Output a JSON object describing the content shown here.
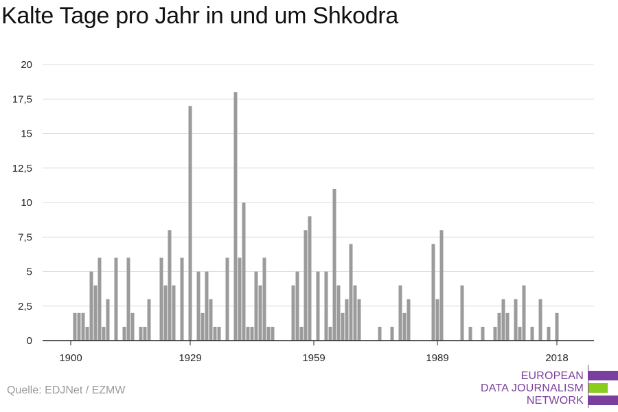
{
  "chart_data": {
    "type": "bar",
    "title": "Kalte Tage pro Jahr in und um Shkodra",
    "xlabel": "",
    "ylabel": "",
    "x_range": [
      1900,
      2022
    ],
    "ylim": [
      0,
      20
    ],
    "y_ticks": [
      0,
      2.5,
      5,
      7.5,
      10,
      12.5,
      15,
      17.5,
      20
    ],
    "y_tick_labels": [
      "0",
      "2,5",
      "5",
      "7,5",
      "10",
      "12,5",
      "15",
      "17,5",
      "20"
    ],
    "x_ticks": [
      1900,
      1929,
      1959,
      1989,
      2018
    ],
    "x_tick_labels": [
      "1900",
      "1929",
      "1959",
      "1989",
      "2018"
    ],
    "grid": true,
    "bar_color": "#9b9b9b",
    "x": [
      1900,
      1901,
      1902,
      1903,
      1904,
      1905,
      1906,
      1907,
      1908,
      1909,
      1910,
      1911,
      1912,
      1913,
      1914,
      1915,
      1916,
      1917,
      1918,
      1919,
      1920,
      1921,
      1922,
      1923,
      1924,
      1925,
      1926,
      1927,
      1928,
      1929,
      1930,
      1931,
      1932,
      1933,
      1934,
      1935,
      1936,
      1937,
      1938,
      1939,
      1940,
      1941,
      1942,
      1943,
      1944,
      1945,
      1946,
      1947,
      1948,
      1949,
      1950,
      1951,
      1952,
      1953,
      1954,
      1955,
      1956,
      1957,
      1958,
      1959,
      1960,
      1961,
      1962,
      1963,
      1964,
      1965,
      1966,
      1967,
      1968,
      1969,
      1970,
      1971,
      1972,
      1973,
      1974,
      1975,
      1976,
      1977,
      1978,
      1979,
      1980,
      1981,
      1982,
      1983,
      1984,
      1985,
      1986,
      1987,
      1988,
      1989,
      1990,
      1991,
      1992,
      1993,
      1994,
      1995,
      1996,
      1997,
      1998,
      1999,
      2000,
      2001,
      2002,
      2003,
      2004,
      2005,
      2006,
      2007,
      2008,
      2009,
      2010,
      2011,
      2012,
      2013,
      2014,
      2015,
      2016,
      2017,
      2018,
      2019,
      2020,
      2021
    ],
    "values": [
      0,
      2,
      2,
      2,
      1,
      5,
      4,
      6,
      1,
      3,
      0,
      6,
      0,
      1,
      6,
      2,
      0,
      1,
      1,
      3,
      0,
      0,
      6,
      4,
      8,
      4,
      0,
      6,
      0,
      17,
      0,
      5,
      2,
      5,
      3,
      1,
      1,
      0,
      6,
      0,
      18,
      6,
      10,
      1,
      1,
      5,
      4,
      6,
      1,
      1,
      0,
      0,
      0,
      0,
      4,
      5,
      1,
      8,
      9,
      0,
      5,
      0,
      5,
      1,
      11,
      4,
      2,
      3,
      7,
      4,
      3,
      0,
      0,
      0,
      0,
      1,
      0,
      0,
      1,
      0,
      4,
      2,
      3,
      0,
      0,
      0,
      0,
      0,
      7,
      3,
      8,
      0,
      0,
      0,
      0,
      4,
      0,
      1,
      0,
      0,
      1,
      0,
      0,
      1,
      2,
      3,
      2,
      0,
      3,
      1,
      4,
      0,
      1,
      0,
      3,
      0,
      1,
      0,
      2,
      0,
      0,
      0
    ]
  },
  "source": "Quelle: EDJNet / EZMW",
  "logo": {
    "lines": [
      "EUROPEAN",
      "DATA JOURNALISM",
      "NETWORK"
    ],
    "color_primary": "#7a3e9d",
    "color_accent": "#8ccc1f"
  }
}
